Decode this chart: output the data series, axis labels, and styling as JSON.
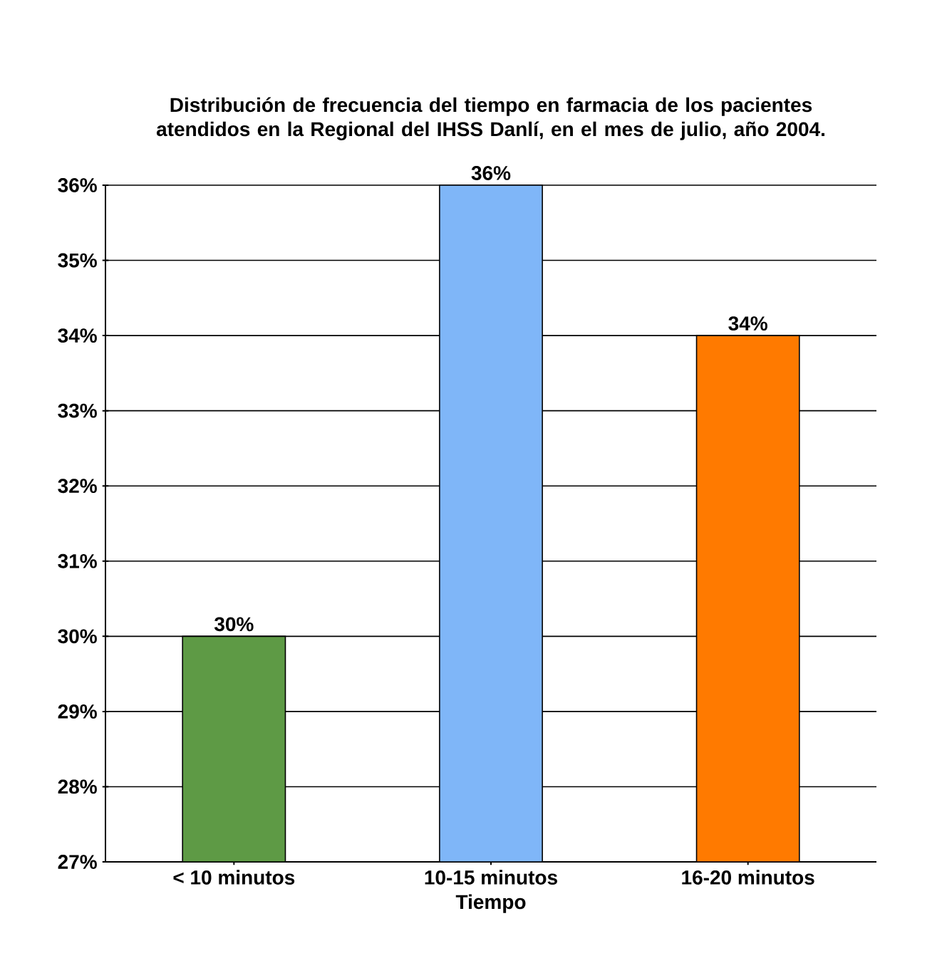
{
  "chart_data": {
    "type": "bar",
    "title": "Distribución de frecuencia del tiempo en farmacia de los pacientes atendidos en la Regional del IHSS Danlí, en el mes de julio, año 2004.",
    "xlabel": "Tiempo",
    "categories": [
      "< 10 minutos",
      "10-15 minutos",
      "16-20 minutos"
    ],
    "values": [
      30,
      36,
      34
    ],
    "colors": [
      "#5e9a45",
      "#7fb6f8",
      "#ff7a00"
    ],
    "value_labels": [
      "30%",
      "36%",
      "34%"
    ],
    "ylim": [
      27,
      36
    ],
    "yticks": [
      {
        "value": 27,
        "label": "27%"
      },
      {
        "value": 28,
        "label": "28%"
      },
      {
        "value": 29,
        "label": "29%"
      },
      {
        "value": 30,
        "label": "30%"
      },
      {
        "value": 31,
        "label": "31%"
      },
      {
        "value": 32,
        "label": "32%"
      },
      {
        "value": 33,
        "label": "33%"
      },
      {
        "value": 34,
        "label": "34%"
      },
      {
        "value": 35,
        "label": "35%"
      },
      {
        "value": 36,
        "label": "36%"
      }
    ],
    "grid": "y"
  }
}
